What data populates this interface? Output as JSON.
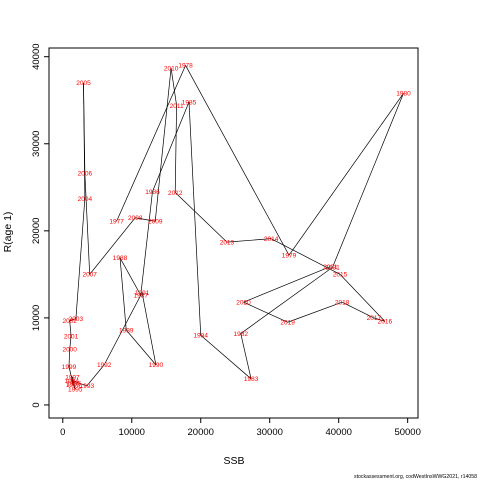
{
  "chart_data": {
    "type": "scatter",
    "mode": "connected-path-with-year-labels",
    "xlabel": "SSB",
    "ylabel": "R(age 1)",
    "xlim": [
      -2000,
      51500
    ],
    "ylim": [
      -1500,
      41000
    ],
    "x_ticks": [
      0,
      10000,
      20000,
      30000,
      40000,
      50000
    ],
    "y_ticks": [
      0,
      10000,
      20000,
      30000,
      40000
    ],
    "label_color": "#ff0000",
    "line_color": "#000000",
    "points": [
      {
        "year": "1977",
        "x": 7800,
        "y": 21100
      },
      {
        "year": "1978",
        "x": 17800,
        "y": 39000
      },
      {
        "year": "1979",
        "x": 32800,
        "y": 17200
      },
      {
        "year": "1980",
        "x": 49400,
        "y": 35800
      },
      {
        "year": "1981",
        "x": 39100,
        "y": 15800
      },
      {
        "year": "1982",
        "x": 25800,
        "y": 8200
      },
      {
        "year": "1983",
        "x": 27300,
        "y": 3000
      },
      {
        "year": "1984",
        "x": 20000,
        "y": 8000
      },
      {
        "year": "1985",
        "x": 18300,
        "y": 34800
      },
      {
        "year": "1986",
        "x": 13000,
        "y": 24500
      },
      {
        "year": "1987",
        "x": 11300,
        "y": 12600
      },
      {
        "year": "1988",
        "x": 8300,
        "y": 16900
      },
      {
        "year": "1989",
        "x": 9200,
        "y": 8600
      },
      {
        "year": "1990",
        "x": 13500,
        "y": 4600
      },
      {
        "year": "1991",
        "x": 11500,
        "y": 12900
      },
      {
        "year": "1992",
        "x": 6000,
        "y": 4600
      },
      {
        "year": "1993",
        "x": 3500,
        "y": 2200
      },
      {
        "year": "1994",
        "x": 1300,
        "y": 2800
      },
      {
        "year": "1995",
        "x": 1800,
        "y": 1800
      },
      {
        "year": "1996",
        "x": 1600,
        "y": 2500
      },
      {
        "year": "1997",
        "x": 1400,
        "y": 3200
      },
      {
        "year": "1998",
        "x": 1500,
        "y": 2300
      },
      {
        "year": "1999",
        "x": 900,
        "y": 4400
      },
      {
        "year": "2000",
        "x": 1000,
        "y": 6400
      },
      {
        "year": "2001",
        "x": 1200,
        "y": 7900
      },
      {
        "year": "2002",
        "x": 1000,
        "y": 9700
      },
      {
        "year": "2003",
        "x": 1900,
        "y": 9900
      },
      {
        "year": "2004",
        "x": 3200,
        "y": 23700
      },
      {
        "year": "2005",
        "x": 3000,
        "y": 37000
      },
      {
        "year": "2006",
        "x": 3200,
        "y": 26600
      },
      {
        "year": "2007",
        "x": 3900,
        "y": 15000
      },
      {
        "year": "2008",
        "x": 10500,
        "y": 21500
      },
      {
        "year": "2009",
        "x": 13400,
        "y": 21100
      },
      {
        "year": "2010",
        "x": 15700,
        "y": 38700
      },
      {
        "year": "2011",
        "x": 16500,
        "y": 34400
      },
      {
        "year": "2012",
        "x": 16300,
        "y": 24400
      },
      {
        "year": "2013",
        "x": 23800,
        "y": 18700
      },
      {
        "year": "2014",
        "x": 30200,
        "y": 19100
      },
      {
        "year": "2015",
        "x": 40200,
        "y": 15000
      },
      {
        "year": "2016",
        "x": 46700,
        "y": 9600
      },
      {
        "year": "2017",
        "x": 45100,
        "y": 10000
      },
      {
        "year": "2018",
        "x": 40500,
        "y": 11800
      },
      {
        "year": "2019",
        "x": 32600,
        "y": 9500
      },
      {
        "year": "2020",
        "x": 26200,
        "y": 11800
      },
      {
        "year": "2021",
        "x": 38800,
        "y": 15900
      }
    ]
  },
  "caption": "stockassessment.org, codWestInsWWG2021, r14058"
}
